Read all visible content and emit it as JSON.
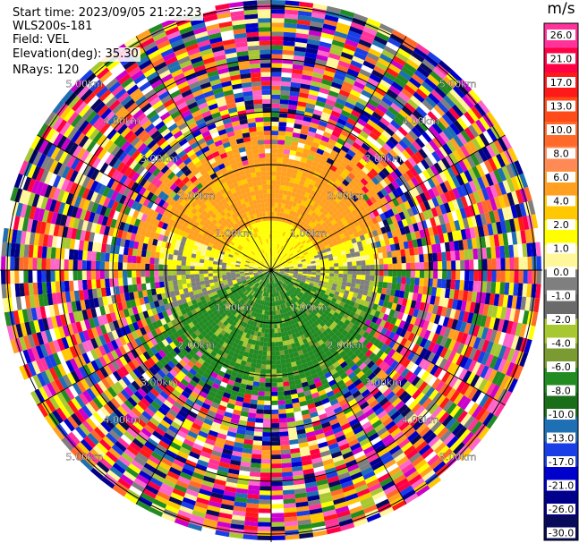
{
  "header": {
    "start_time": "Start time: 2023/09/05 21:22:23",
    "instrument": "WLS200s-181",
    "field": "Field: VEL",
    "elevation": "Elevation(deg): 35.30",
    "nrays": "NRays: 120"
  },
  "plot": {
    "type": "ppi",
    "range_ring_labels": [
      "1.00km",
      "2.00km",
      "3.00km",
      "4.00km",
      "5.00km"
    ],
    "n_rays": 120
  },
  "colorbar": {
    "units": "m/s",
    "tick_labels": [
      "26.0",
      "21.0",
      "17.0",
      "13.0",
      "10.0",
      "8.0",
      "6.0",
      "4.0",
      "2.0",
      "1.0",
      "0.0",
      "-1.0",
      "-2.0",
      "-4.0",
      "-6.0",
      "-8.0",
      "-10.0",
      "-13.0",
      "-17.0",
      "-21.0",
      "-26.0",
      "-30.0"
    ],
    "colors": [
      "#ff3399",
      "#ff0044",
      "#ff1a1a",
      "#ff4a1a",
      "#ff6a2a",
      "#ff8a55",
      "#ffa020",
      "#ffc800",
      "#ffff00",
      "#fff799",
      "#7f7f7f",
      "#6a6a6a",
      "#a8c832",
      "#7a9a32",
      "#228b22",
      "#1a6e1a",
      "#1e6fb4",
      "#1a3ee6",
      "#0000cc",
      "#00008b",
      "#0a0a5a"
    ]
  }
}
